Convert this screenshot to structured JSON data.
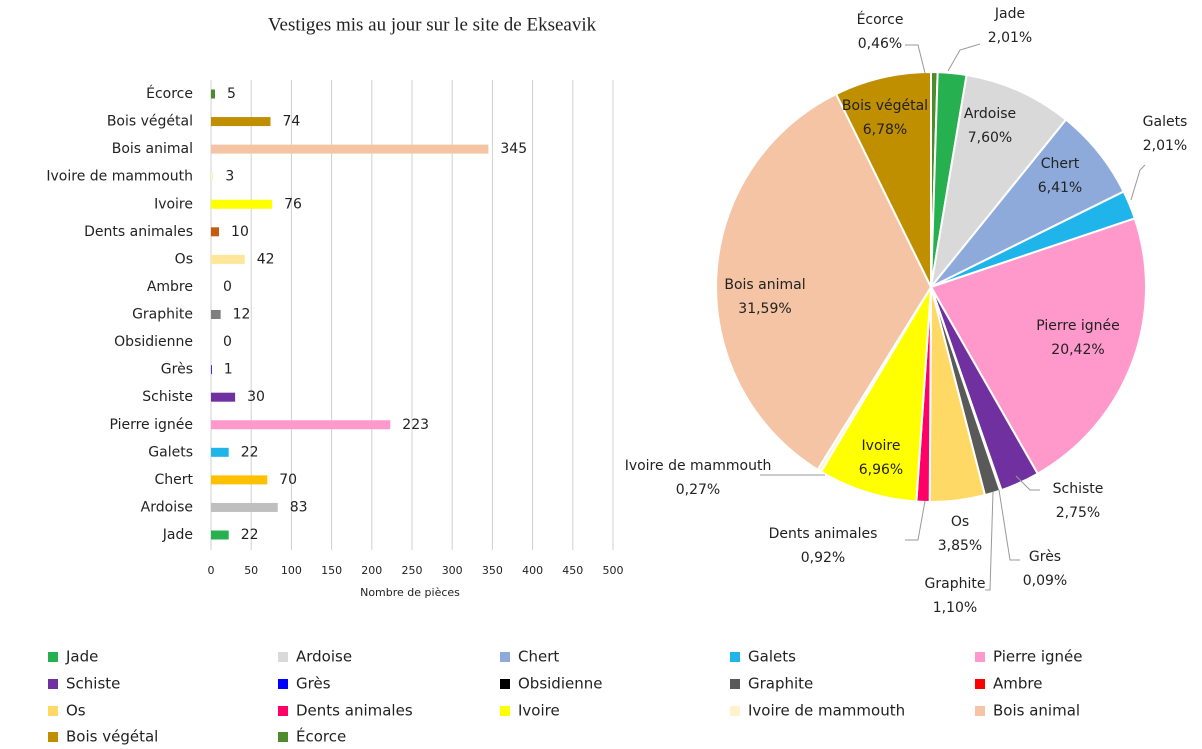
{
  "chart_data": [
    {
      "type": "bar",
      "orientation": "horizontal",
      "title": "Vestiges mis au jour sur le site de Ekseavik",
      "x_label": "Nombre de pièces",
      "categories": [
        "Écorce",
        "Bois végétal",
        "Bois animal",
        "Ivoire de mammouth",
        "Ivoire",
        "Dents animales",
        "Os",
        "Ambre",
        "Graphite",
        "Obsidienne",
        "Grès",
        "Schiste",
        "Pierre ignée",
        "Galets",
        "Chert",
        "Ardoise",
        "Jade"
      ],
      "values": [
        5,
        74,
        345,
        3,
        76,
        10,
        42,
        0,
        12,
        0,
        1,
        30,
        223,
        22,
        70,
        83,
        22
      ],
      "colors": [
        "#4e8a2e",
        "#bf8f00",
        "#f4c4a4",
        "#fff2cc",
        "#ffff00",
        "#c55a11",
        "#ffe699",
        "#ff0000",
        "#7f7f7f",
        "#000000",
        "#0000ff",
        "#7030a0",
        "#ff99cc",
        "#1fb5ea",
        "#ffc000",
        "#bfbfbf",
        "#27b04f"
      ],
      "xlim": [
        0,
        500
      ],
      "xticks": [
        0,
        50,
        100,
        150,
        200,
        250,
        300,
        350,
        400,
        450,
        500
      ],
      "grid": true
    },
    {
      "type": "pie",
      "categories": [
        "Écorce",
        "Jade",
        "Ardoise",
        "Chert",
        "Galets",
        "Pierre ignée",
        "Schiste",
        "Grès",
        "Graphite",
        "Os",
        "Dents animales",
        "Ivoire",
        "Ivoire de mammouth",
        "Bois animal",
        "Bois végétal"
      ],
      "values": [
        0.46,
        2.01,
        7.6,
        6.41,
        2.01,
        20.42,
        2.75,
        0.09,
        1.1,
        3.85,
        0.92,
        6.96,
        0.27,
        31.59,
        6.78
      ],
      "value_labels": [
        "0,46%",
        "2,01%",
        "7,60%",
        "6,41%",
        "2,01%",
        "20,42%",
        "2,75%",
        "0,09%",
        "1,10%",
        "3,85%",
        "0,92%",
        "6,96%",
        "0,27%",
        "31,59%",
        "6,78%"
      ],
      "colors": [
        "#4e8a2e",
        "#27b04f",
        "#d9d9d9",
        "#8eaadb",
        "#1fb5ea",
        "#ff99cc",
        "#7030a0",
        "#0000ff",
        "#595959",
        "#ffd966",
        "#ff0066",
        "#ffff00",
        "#fff2cc",
        "#f4c4a4",
        "#bf8f00"
      ],
      "legend": [
        {
          "name": "Jade",
          "color": "#27b04f"
        },
        {
          "name": "Ardoise",
          "color": "#d9d9d9"
        },
        {
          "name": "Chert",
          "color": "#8eaadb"
        },
        {
          "name": "Galets",
          "color": "#1fb5ea"
        },
        {
          "name": "Pierre ignée",
          "color": "#ff99cc"
        },
        {
          "name": "Schiste",
          "color": "#7030a0"
        },
        {
          "name": "Grès",
          "color": "#0000ff"
        },
        {
          "name": "Obsidienne",
          "color": "#000000"
        },
        {
          "name": "Graphite",
          "color": "#595959"
        },
        {
          "name": "Ambre",
          "color": "#ff0000"
        },
        {
          "name": "Os",
          "color": "#ffd966"
        },
        {
          "name": "Dents animales",
          "color": "#ff0066"
        },
        {
          "name": "Ivoire",
          "color": "#ffff00"
        },
        {
          "name": "Ivoire de mammouth",
          "color": "#fff2cc"
        },
        {
          "name": "Bois animal",
          "color": "#f4c4a4"
        },
        {
          "name": "Bois végétal",
          "color": "#bf8f00"
        },
        {
          "name": "Écorce",
          "color": "#4e8a2e"
        }
      ]
    }
  ]
}
